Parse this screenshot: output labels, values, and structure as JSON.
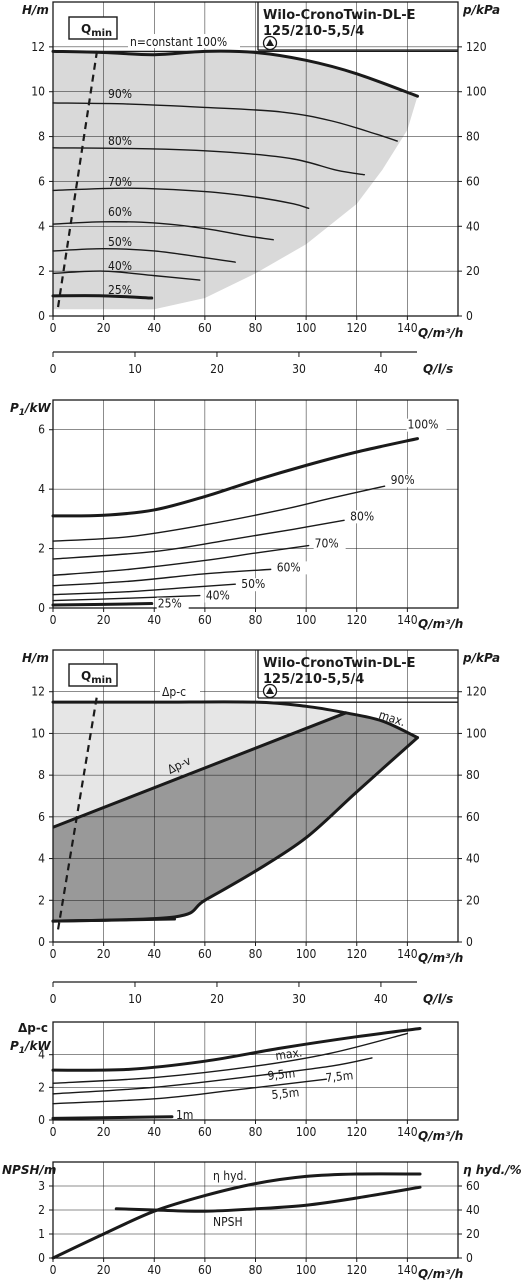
{
  "colors": {
    "ink": "#1a1a1a",
    "light_fill": "#d9d9d9",
    "dark_fill": "#999999",
    "band_fill": "#e6e6e6"
  },
  "chart_data": [
    {
      "id": "h1",
      "type": "line",
      "title": "Wilo-CronoTwin-DL-E\n125/210-5,5/4",
      "title_lines": [
        "Wilo-CronoTwin-DL-E",
        "125/210-5,5/4"
      ],
      "title_icon": "pump-triangle-icon",
      "ylabel": "H/m",
      "ylabel_right": "p/kPa",
      "xlabel": "Q/m³/h",
      "xlim": [
        0,
        160
      ],
      "ylim": [
        0,
        14
      ],
      "ylim_right": [
        0,
        140
      ],
      "xticks": [
        0,
        20,
        40,
        60,
        80,
        100,
        120,
        140
      ],
      "yticks": [
        0,
        2,
        4,
        6,
        8,
        10,
        12
      ],
      "yticks_right": [
        0,
        20,
        40,
        60,
        80,
        100,
        120
      ],
      "grid": true,
      "qmin_label": "Q",
      "qmin_sub": "min",
      "constant_label": "n=constant 100%",
      "qmin_line": [
        [
          2,
          0.4
        ],
        [
          17.5,
          11.9
        ]
      ],
      "envelope": [
        [
          0,
          11.8
        ],
        [
          20,
          11.8
        ],
        [
          40,
          11.8
        ],
        [
          60,
          11.8
        ],
        [
          80,
          11.7
        ],
        [
          100,
          11.4
        ],
        [
          120,
          10.8
        ],
        [
          144,
          9.8
        ],
        [
          140,
          8.3
        ],
        [
          130,
          6.5
        ],
        [
          120,
          5.0
        ],
        [
          100,
          3.2
        ],
        [
          80,
          1.9
        ],
        [
          60,
          0.8
        ],
        [
          40,
          0.3
        ],
        [
          0,
          0.3
        ]
      ],
      "series": [
        {
          "name": "100%",
          "label": "",
          "bold": true,
          "points": [
            [
              0,
              11.8
            ],
            [
              20,
              11.75
            ],
            [
              40,
              11.65
            ],
            [
              60,
              11.8
            ],
            [
              80,
              11.75
            ],
            [
              100,
              11.4
            ],
            [
              120,
              10.8
            ],
            [
              144,
              9.8
            ]
          ]
        },
        {
          "name": "90%",
          "label": "90%",
          "points": [
            [
              0,
              9.5
            ],
            [
              30,
              9.45
            ],
            [
              60,
              9.3
            ],
            [
              90,
              9.1
            ],
            [
              110,
              8.7
            ],
            [
              128,
              8.1
            ],
            [
              136,
              7.8
            ]
          ]
        },
        {
          "name": "80%",
          "label": "80%",
          "points": [
            [
              0,
              7.5
            ],
            [
              40,
              7.45
            ],
            [
              70,
              7.3
            ],
            [
              95,
              7.0
            ],
            [
              112,
              6.5
            ],
            [
              123,
              6.3
            ]
          ]
        },
        {
          "name": "70%",
          "label": "70%",
          "points": [
            [
              0,
              5.6
            ],
            [
              30,
              5.7
            ],
            [
              60,
              5.55
            ],
            [
              80,
              5.3
            ],
            [
              95,
              5.0
            ],
            [
              101,
              4.8
            ]
          ]
        },
        {
          "name": "60%",
          "label": "60%",
          "points": [
            [
              0,
              4.1
            ],
            [
              20,
              4.2
            ],
            [
              40,
              4.15
            ],
            [
              60,
              3.9
            ],
            [
              75,
              3.6
            ],
            [
              87,
              3.4
            ]
          ]
        },
        {
          "name": "50%",
          "label": "50%",
          "points": [
            [
              0,
              2.9
            ],
            [
              20,
              3.0
            ],
            [
              40,
              2.9
            ],
            [
              60,
              2.6
            ],
            [
              72,
              2.4
            ]
          ]
        },
        {
          "name": "40%",
          "label": "40%",
          "points": [
            [
              0,
              1.9
            ],
            [
              20,
              2.0
            ],
            [
              40,
              1.8
            ],
            [
              58,
              1.6
            ]
          ]
        },
        {
          "name": "25%",
          "label": "25%",
          "bold": true,
          "points": [
            [
              0,
              0.9
            ],
            [
              20,
              0.9
            ],
            [
              39,
              0.8
            ]
          ]
        }
      ],
      "secondary_axis": {
        "label": "Q/l/s",
        "ticks": [
          0,
          10,
          20,
          30,
          40
        ],
        "lim": [
          0,
          44.4
        ]
      }
    },
    {
      "id": "p1",
      "type": "line",
      "ylabel": "P1/kW",
      "ylabel_main": "P",
      "ylabel_sub": "1",
      "ylabel_unit": "/kW",
      "xlabel": "Q/m³/h",
      "xlim": [
        0,
        160
      ],
      "ylim": [
        0,
        7
      ],
      "xticks": [
        0,
        20,
        40,
        60,
        80,
        100,
        120,
        140
      ],
      "yticks": [
        0,
        2,
        4,
        6
      ],
      "grid": true,
      "series": [
        {
          "name": "100%",
          "label": "100%",
          "bold": true,
          "points": [
            [
              0,
              3.1
            ],
            [
              20,
              3.12
            ],
            [
              40,
              3.3
            ],
            [
              60,
              3.75
            ],
            [
              80,
              4.3
            ],
            [
              100,
              4.8
            ],
            [
              120,
              5.25
            ],
            [
              144,
              5.7
            ]
          ]
        },
        {
          "name": "90%",
          "label": "90%",
          "points": [
            [
              0,
              2.25
            ],
            [
              30,
              2.4
            ],
            [
              60,
              2.8
            ],
            [
              90,
              3.3
            ],
            [
              110,
              3.7
            ],
            [
              131,
              4.1
            ]
          ]
        },
        {
          "name": "80%",
          "label": "80%",
          "points": [
            [
              0,
              1.65
            ],
            [
              40,
              1.9
            ],
            [
              70,
              2.3
            ],
            [
              95,
              2.65
            ],
            [
              115,
              2.95
            ]
          ]
        },
        {
          "name": "70%",
          "label": "70%",
          "points": [
            [
              0,
              1.1
            ],
            [
              30,
              1.3
            ],
            [
              60,
              1.6
            ],
            [
              80,
              1.85
            ],
            [
              101,
              2.1
            ]
          ]
        },
        {
          "name": "60%",
          "label": "60%",
          "points": [
            [
              0,
              0.75
            ],
            [
              30,
              0.9
            ],
            [
              60,
              1.15
            ],
            [
              86,
              1.3
            ]
          ]
        },
        {
          "name": "50%",
          "label": "50%",
          "points": [
            [
              0,
              0.45
            ],
            [
              30,
              0.55
            ],
            [
              55,
              0.7
            ],
            [
              72,
              0.8
            ]
          ]
        },
        {
          "name": "40%",
          "label": "40%",
          "points": [
            [
              0,
              0.25
            ],
            [
              30,
              0.33
            ],
            [
              58,
              0.42
            ]
          ]
        },
        {
          "name": "25%",
          "label": "25%",
          "bold": true,
          "points": [
            [
              0,
              0.1
            ],
            [
              20,
              0.12
            ],
            [
              39,
              0.15
            ]
          ]
        }
      ]
    },
    {
      "id": "h2",
      "type": "area",
      "title_lines": [
        "Wilo-CronoTwin-DL-E",
        "125/210-5,5/4"
      ],
      "title_icon": "pump-triangle-icon",
      "ylabel": "H/m",
      "ylabel_right": "p/kPa",
      "xlabel": "Q/m³/h",
      "xlim": [
        0,
        160
      ],
      "ylim": [
        0,
        14
      ],
      "ylim_right": [
        0,
        140
      ],
      "xticks": [
        0,
        20,
        40,
        60,
        80,
        100,
        120,
        140
      ],
      "yticks": [
        0,
        2,
        4,
        6,
        8,
        10,
        12
      ],
      "yticks_right": [
        0,
        20,
        40,
        60,
        80,
        100,
        120
      ],
      "grid": true,
      "qmin_label": "Q",
      "qmin_sub": "min",
      "qmin_line": [
        [
          2,
          0.6
        ],
        [
          17.5,
          11.9
        ]
      ],
      "label_dpc": "Δp-c",
      "label_dpv": "Δp-v",
      "label_max": "max.",
      "dpc_line": [
        [
          0,
          11.5
        ],
        [
          160,
          11.5
        ]
      ],
      "max_curve": [
        [
          0,
          11.5
        ],
        [
          40,
          11.5
        ],
        [
          80,
          11.5
        ],
        [
          100,
          11.3
        ],
        [
          115,
          11.0
        ],
        [
          130,
          10.6
        ],
        [
          144,
          9.8
        ]
      ],
      "dpv_line": [
        [
          0,
          5.5
        ],
        [
          116,
          11.0
        ]
      ],
      "lower_curve": [
        [
          0,
          1.0
        ],
        [
          48,
          1.2
        ],
        [
          60,
          2.0
        ],
        [
          80,
          3.4
        ],
        [
          100,
          5.0
        ],
        [
          120,
          7.2
        ],
        [
          144,
          9.8
        ]
      ],
      "bottom_bold": [
        [
          0,
          1.0
        ],
        [
          48,
          1.1
        ]
      ],
      "secondary_axis": {
        "label": "Q/l/s",
        "ticks": [
          0,
          10,
          20,
          30,
          40
        ],
        "lim": [
          0,
          44.4
        ]
      }
    },
    {
      "id": "p2",
      "type": "line",
      "ylabel_top": "Δp-c",
      "ylabel_main": "P",
      "ylabel_sub": "1",
      "ylabel_unit": "/kW",
      "xlabel": "Q/m³/h",
      "xlim": [
        0,
        160
      ],
      "ylim": [
        0,
        6
      ],
      "xticks": [
        0,
        20,
        40,
        60,
        80,
        100,
        120,
        140
      ],
      "yticks": [
        0,
        2,
        4
      ],
      "grid": true,
      "series": [
        {
          "name": "max.",
          "label": "max.",
          "bold": true,
          "points": [
            [
              0,
              3.05
            ],
            [
              30,
              3.1
            ],
            [
              60,
              3.6
            ],
            [
              90,
              4.4
            ],
            [
              120,
              5.1
            ],
            [
              145,
              5.6
            ]
          ]
        },
        {
          "name": "9,5m",
          "label": "9,5m",
          "points": [
            [
              0,
              2.25
            ],
            [
              40,
              2.6
            ],
            [
              80,
              3.3
            ],
            [
              110,
              4.1
            ],
            [
              140,
              5.3
            ]
          ]
        },
        {
          "name": "7,5m",
          "label": "7,5m",
          "points": [
            [
              0,
              1.6
            ],
            [
              40,
              2.0
            ],
            [
              80,
              2.7
            ],
            [
              110,
              3.3
            ],
            [
              126,
              3.8
            ]
          ]
        },
        {
          "name": "5,5m",
          "label": "5,5m",
          "points": [
            [
              0,
              1.0
            ],
            [
              40,
              1.3
            ],
            [
              70,
              1.8
            ],
            [
              108,
              2.5
            ]
          ]
        },
        {
          "name": "1m",
          "label": "1m",
          "bold": true,
          "points": [
            [
              0,
              0.1
            ],
            [
              47,
              0.2
            ]
          ]
        }
      ]
    },
    {
      "id": "npsh",
      "type": "line",
      "ylabel": "NPSH/m",
      "ylabel_right": "η hyd./%",
      "xlabel": "Q/m³/h",
      "xlim": [
        0,
        160
      ],
      "ylim": [
        0,
        4
      ],
      "ylim_right": [
        0,
        80
      ],
      "xticks": [
        0,
        20,
        40,
        60,
        80,
        100,
        120,
        140
      ],
      "yticks": [
        0,
        1,
        2,
        3
      ],
      "yticks_right": [
        0,
        20,
        40,
        60
      ],
      "grid": true,
      "series": [
        {
          "name": "η hyd.",
          "label": "η hyd.",
          "bold": true,
          "axis": "right",
          "points": [
            [
              0,
              0
            ],
            [
              20,
              20
            ],
            [
              40,
              39
            ],
            [
              60,
              52
            ],
            [
              80,
              62
            ],
            [
              100,
              68
            ],
            [
              120,
              70
            ],
            [
              145,
              70
            ]
          ]
        },
        {
          "name": "NPSH",
          "label": "NPSH",
          "bold": true,
          "axis": "left",
          "points": [
            [
              25,
              2.05
            ],
            [
              40,
              2.0
            ],
            [
              60,
              1.95
            ],
            [
              80,
              2.05
            ],
            [
              100,
              2.2
            ],
            [
              120,
              2.5
            ],
            [
              145,
              2.95
            ]
          ]
        }
      ]
    }
  ]
}
